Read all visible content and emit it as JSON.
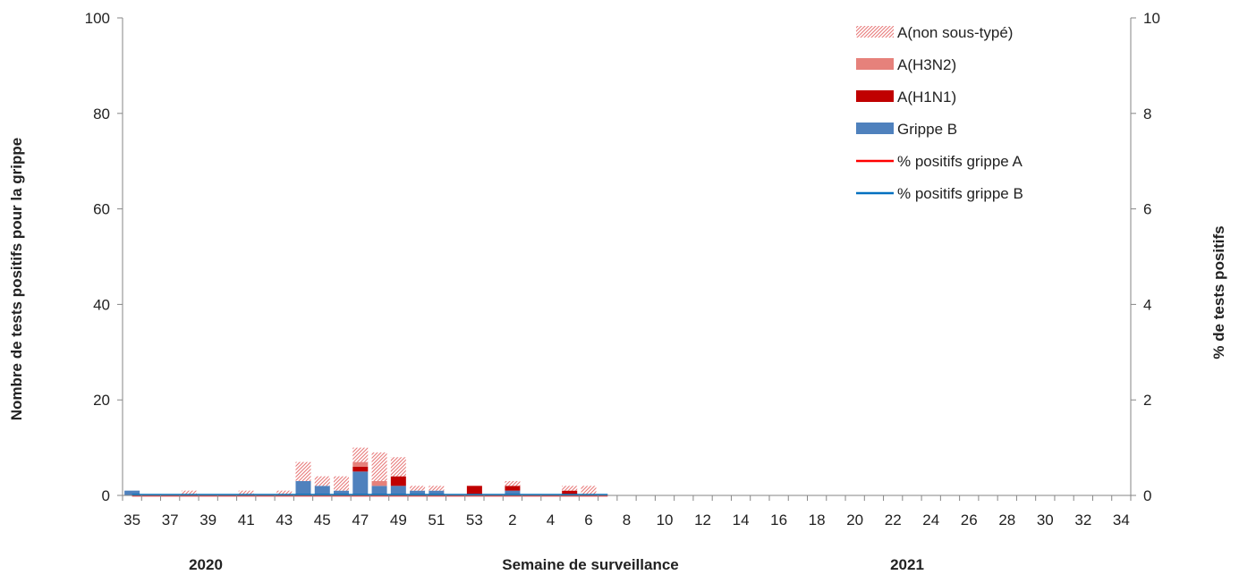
{
  "chart_data": {
    "type": "bar",
    "title": "",
    "xlabel": "Semaine de surveillance",
    "ylabel_left": "Nombre de tests positifs pour la grippe",
    "ylabel_right": "% de tests positifs",
    "ylim_left": [
      0,
      100
    ],
    "ylim_right": [
      0,
      10
    ],
    "yticks_left": [
      "0",
      "20",
      "40",
      "60",
      "80",
      "100"
    ],
    "yticks_right": [
      "0",
      "2",
      "4",
      "6",
      "8",
      "10"
    ],
    "year_labels": [
      "2020",
      "2021"
    ],
    "legend_position": "top-right",
    "grid": false,
    "categories": [
      "35",
      "36",
      "37",
      "38",
      "39",
      "40",
      "41",
      "42",
      "43",
      "44",
      "45",
      "46",
      "47",
      "48",
      "49",
      "50",
      "51",
      "52",
      "53",
      "1",
      "2",
      "3",
      "4",
      "5",
      "6",
      "7",
      "8",
      "9",
      "10",
      "11",
      "12",
      "13",
      "14",
      "15",
      "16",
      "17",
      "18",
      "19",
      "20",
      "21",
      "22",
      "23",
      "24",
      "25",
      "26",
      "27",
      "28",
      "29",
      "30",
      "31",
      "32",
      "33",
      "34"
    ],
    "x_tick_labels": [
      "35",
      "37",
      "39",
      "41",
      "43",
      "45",
      "47",
      "49",
      "51",
      "53",
      "2",
      "4",
      "6",
      "8",
      "10",
      "12",
      "14",
      "16",
      "18",
      "20",
      "22",
      "24",
      "26",
      "28",
      "30",
      "32",
      "34"
    ],
    "series": [
      {
        "name": "Grippe B",
        "kind": "bar",
        "color": "#4f81bd",
        "values": [
          1,
          0,
          0,
          0,
          0,
          0,
          0,
          0,
          0,
          3,
          2,
          1,
          5,
          2,
          2,
          1,
          1,
          0,
          0,
          0,
          1,
          0,
          0,
          0,
          0,
          0,
          0,
          0,
          0,
          0,
          0,
          0,
          0,
          0,
          0,
          0,
          0,
          0,
          0,
          0,
          0,
          0,
          0,
          0,
          0,
          0,
          0,
          0,
          0,
          0,
          0,
          0,
          0
        ]
      },
      {
        "name": "A(H1N1)",
        "kind": "bar",
        "color": "#c00000",
        "values": [
          0,
          0,
          0,
          0,
          0,
          0,
          0,
          0,
          0,
          0,
          0,
          0,
          1,
          0,
          2,
          0,
          0,
          0,
          2,
          0,
          1,
          0,
          0,
          1,
          0,
          0,
          0,
          0,
          0,
          0,
          0,
          0,
          0,
          0,
          0,
          0,
          0,
          0,
          0,
          0,
          0,
          0,
          0,
          0,
          0,
          0,
          0,
          0,
          0,
          0,
          0,
          0,
          0
        ]
      },
      {
        "name": "A(H3N2)",
        "kind": "bar",
        "color": "#e6817b",
        "values": [
          0,
          0,
          0,
          0,
          0,
          0,
          0,
          0,
          0,
          0,
          0,
          0,
          1,
          1,
          0,
          0,
          0,
          0,
          0,
          0,
          0,
          0,
          0,
          0,
          0,
          0,
          0,
          0,
          0,
          0,
          0,
          0,
          0,
          0,
          0,
          0,
          0,
          0,
          0,
          0,
          0,
          0,
          0,
          0,
          0,
          0,
          0,
          0,
          0,
          0,
          0,
          0,
          0
        ]
      },
      {
        "name": "A(non sous-typé)",
        "kind": "bar-hatched",
        "color": "#e87b7b",
        "values": [
          0,
          0,
          0,
          1,
          0,
          0,
          1,
          0,
          1,
          4,
          2,
          3,
          3,
          6,
          4,
          1,
          1,
          0,
          0,
          0,
          1,
          0,
          0,
          1,
          2,
          0,
          0,
          0,
          0,
          0,
          0,
          0,
          0,
          0,
          0,
          0,
          0,
          0,
          0,
          0,
          0,
          0,
          0,
          0,
          0,
          0,
          0,
          0,
          0,
          0,
          0,
          0,
          0
        ]
      },
      {
        "name": "% positifs grippe A",
        "kind": "line",
        "axis": "right",
        "color": "#ff0000",
        "values": [
          0,
          0,
          0,
          0,
          0,
          0,
          0,
          0,
          0,
          0,
          0,
          0,
          0,
          0,
          0,
          0,
          0,
          0,
          0,
          0,
          0,
          0,
          0,
          0,
          0,
          0,
          null,
          null,
          null,
          null,
          null,
          null,
          null,
          null,
          null,
          null,
          null,
          null,
          null,
          null,
          null,
          null,
          null,
          null,
          null,
          null,
          null,
          null,
          null,
          null,
          null,
          null,
          null
        ]
      },
      {
        "name": "% positifs grippe B",
        "kind": "line",
        "axis": "right",
        "color": "#0070c0",
        "values": [
          0,
          0,
          0,
          0,
          0,
          0,
          0,
          0,
          0,
          0,
          0,
          0,
          0,
          0,
          0,
          0,
          0,
          0,
          0,
          0,
          0,
          0,
          0,
          0,
          0,
          0,
          null,
          null,
          null,
          null,
          null,
          null,
          null,
          null,
          null,
          null,
          null,
          null,
          null,
          null,
          null,
          null,
          null,
          null,
          null,
          null,
          null,
          null,
          null,
          null,
          null,
          null,
          null
        ]
      }
    ]
  }
}
